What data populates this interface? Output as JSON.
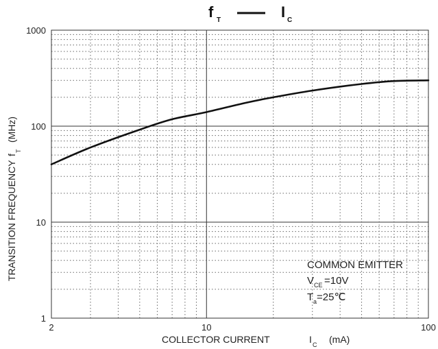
{
  "chart_data": {
    "type": "line",
    "title": {
      "main": "f",
      "main_sub": "T",
      "dash": "—",
      "second": "I",
      "second_sub": "C"
    },
    "xlabel": {
      "text": "COLLECTOR CURRENT",
      "symbol": "I",
      "symbol_sub": "C",
      "unit": "(mA)"
    },
    "ylabel": {
      "text": "TRANSITION FREQUENCY",
      "symbol": "f",
      "symbol_sub": "T",
      "unit": "(MHz)"
    },
    "x_scale": "log",
    "y_scale": "log",
    "xlim": [
      2,
      100
    ],
    "ylim": [
      1,
      1000
    ],
    "x_ticks": [
      {
        "value": 2,
        "label": "2"
      },
      {
        "value": 10,
        "label": "10"
      },
      {
        "value": 100,
        "label": "100"
      }
    ],
    "y_ticks": [
      {
        "value": 1,
        "label": "1"
      },
      {
        "value": 10,
        "label": "10"
      },
      {
        "value": 100,
        "label": "100"
      },
      {
        "value": 1000,
        "label": "1000"
      }
    ],
    "grid": true,
    "series": [
      {
        "x": [
          2,
          3,
          5,
          7,
          10,
          15,
          20,
          30,
          50,
          70,
          100
        ],
        "y": [
          40,
          60,
          92,
          118,
          140,
          175,
          200,
          235,
          275,
          295,
          300
        ]
      }
    ],
    "annotation": {
      "line1": "COMMON EMITTER",
      "line2_symbol": "V",
      "line2_sub": "CE",
      "line2_value": "=10V",
      "line3_symbol": "T",
      "line3_sub": "a",
      "line3_value": "=25℃"
    }
  }
}
